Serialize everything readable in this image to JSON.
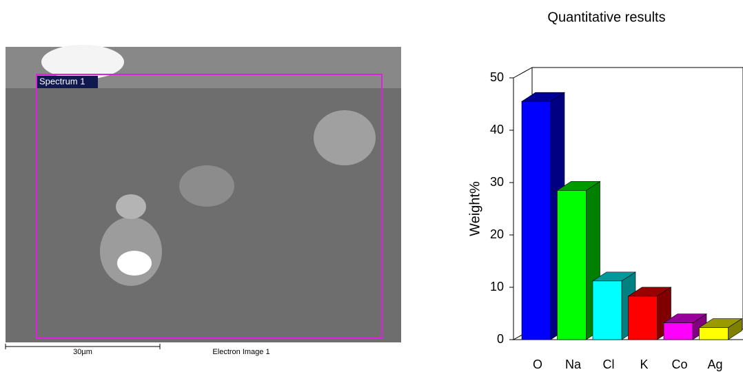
{
  "image": {
    "label": "Spectrum 1",
    "scale_bar": "30µm",
    "caption": "Electron Image 1"
  },
  "chart_data": {
    "type": "bar3d",
    "title": "Quantitative results",
    "y_label": "Weight%",
    "categories": [
      "O",
      "Na",
      "Cl",
      "K",
      "Co",
      "Ag"
    ],
    "values": [
      45.5,
      28.5,
      11.2,
      8.3,
      3.2,
      2.3
    ],
    "colors": [
      "#0000ff",
      "#00ff00",
      "#00ffff",
      "#ff0000",
      "#ff00ff",
      "#ffff00"
    ],
    "ylim": [
      0,
      50
    ],
    "yticks": [
      0,
      10,
      20,
      30,
      40,
      50
    ]
  }
}
